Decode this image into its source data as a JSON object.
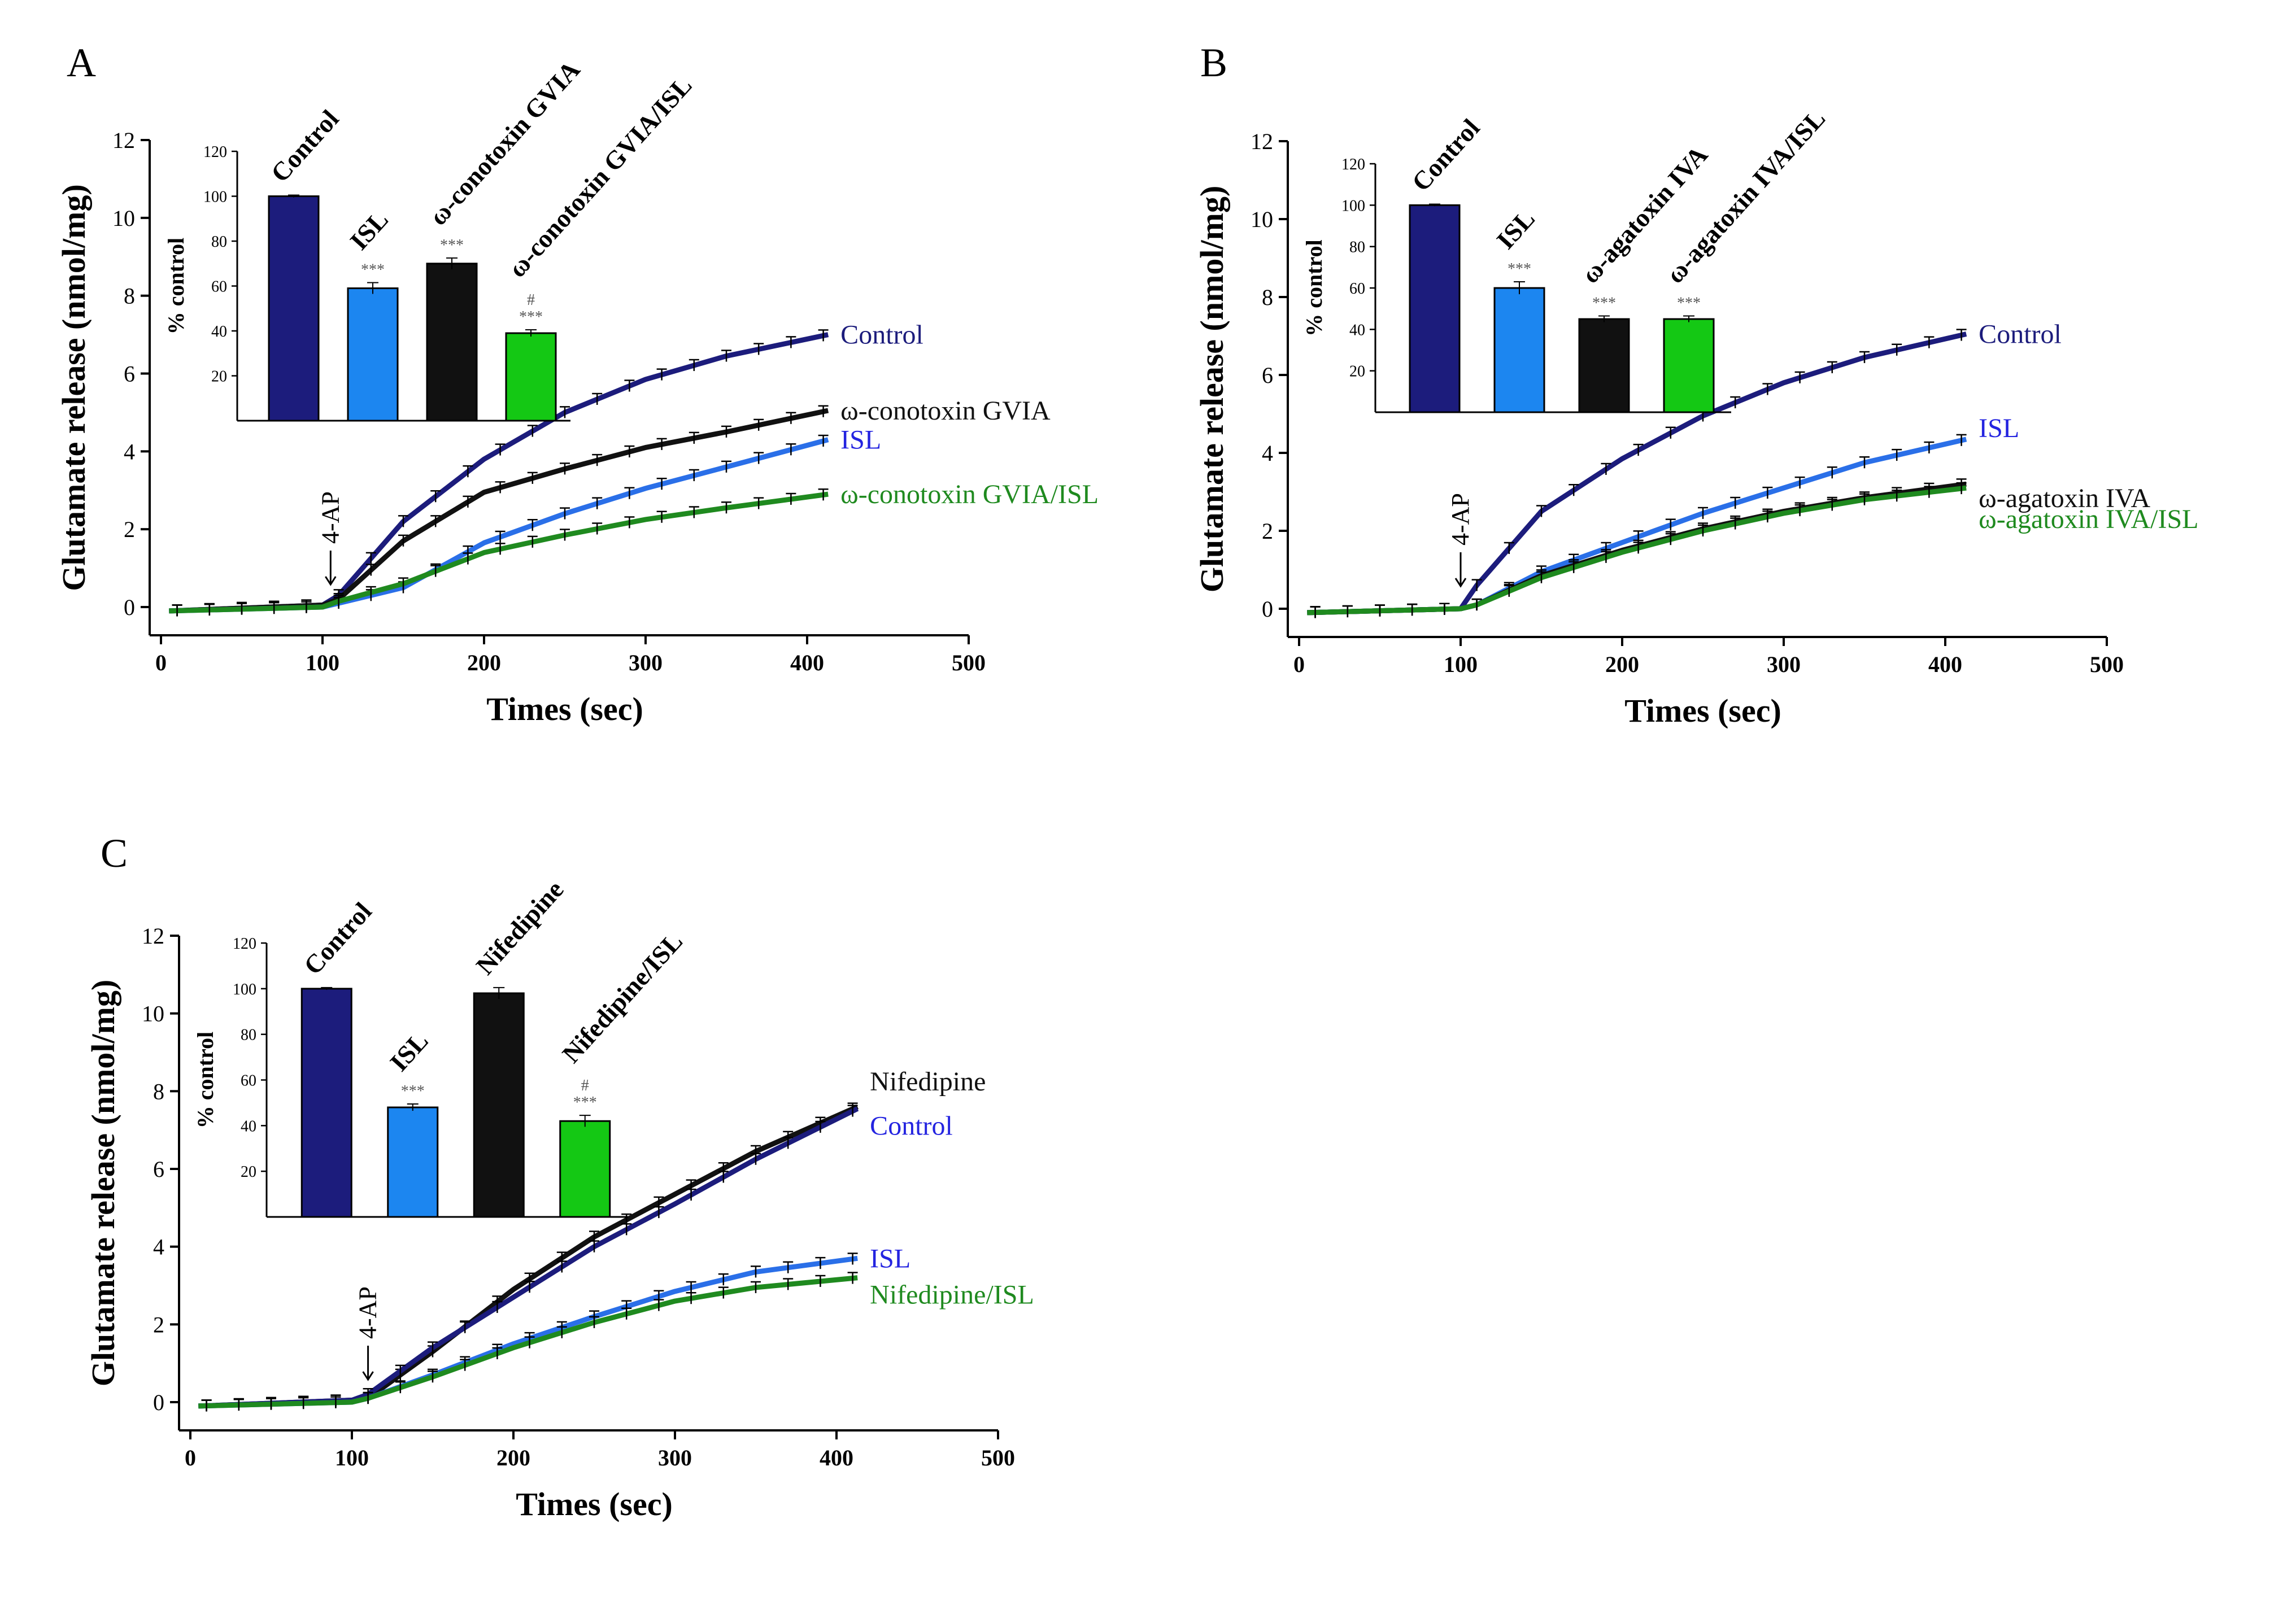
{
  "figure": {
    "colors": {
      "control": "#1c1c7c",
      "isl_line": "#2a6fe8",
      "isl_bar": "#1c86f0",
      "isl_label": "#2424e0",
      "treat": "#111111",
      "combo": "#1f8a1f",
      "combo_bar": "#14c814",
      "axis": "#000000"
    }
  },
  "chart_data": [
    {
      "panel_label": "A",
      "type": "line",
      "xlabel": "Times (sec)",
      "ylabel": "Glutamate release (nmol/mg)",
      "xlim": [
        0,
        500
      ],
      "ylim": [
        -1,
        12
      ],
      "xticks": [
        0,
        100,
        200,
        300,
        400,
        500
      ],
      "yticks": [
        0,
        2,
        4,
        6,
        8,
        10,
        12
      ],
      "stimulus": {
        "label": "4-AP",
        "x": 105
      },
      "series": [
        {
          "name": "Control",
          "color_key": "control",
          "label_color_key": "control",
          "x": [
            5,
            100,
            110,
            150,
            200,
            250,
            300,
            350,
            413
          ],
          "y": [
            -0.1,
            0.05,
            0.3,
            2.2,
            3.8,
            5.0,
            5.85,
            6.45,
            7.0
          ]
        },
        {
          "name": "ω-conotoxin GVIA",
          "color_key": "treat",
          "label_color_key": "treat",
          "x": [
            5,
            100,
            110,
            150,
            200,
            250,
            300,
            350,
            413
          ],
          "y": [
            -0.1,
            0.05,
            0.2,
            1.7,
            2.95,
            3.55,
            4.1,
            4.5,
            5.05
          ]
        },
        {
          "name": "ISL",
          "color_key": "isl_line",
          "label_color_key": "isl_label",
          "x": [
            5,
            100,
            110,
            150,
            200,
            250,
            300,
            350,
            413
          ],
          "y": [
            -0.1,
            0.0,
            0.1,
            0.5,
            1.65,
            2.4,
            3.05,
            3.6,
            4.3
          ]
        },
        {
          "name": "ω-conotoxin GVIA/ISL",
          "color_key": "combo",
          "label_color_key": "combo",
          "x": [
            5,
            100,
            110,
            150,
            200,
            250,
            300,
            350,
            413
          ],
          "y": [
            -0.1,
            0.0,
            0.15,
            0.6,
            1.4,
            1.85,
            2.25,
            2.55,
            2.9
          ]
        }
      ],
      "inset": {
        "type": "bar",
        "ylabel": "% control",
        "ylim": [
          0,
          120
        ],
        "yticks": [
          20,
          40,
          60,
          80,
          100,
          120
        ],
        "categories": [
          "Control",
          "ISL",
          "ω-conotoxin GVIA",
          "ω-conotoxin GVIA/ISL"
        ],
        "values": [
          100,
          59,
          70,
          39
        ],
        "errors": [
          0.5,
          2.5,
          2.5,
          1.5
        ],
        "color_keys": [
          "control",
          "isl_bar",
          "treat",
          "combo_bar"
        ],
        "annotations": [
          "",
          "***",
          "***",
          "#\n***"
        ]
      }
    },
    {
      "panel_label": "B",
      "type": "line",
      "xlabel": "Times (sec)",
      "ylabel": "Glutamate release (nmol/mg)",
      "xlim": [
        0,
        500
      ],
      "ylim": [
        -1,
        12
      ],
      "xticks": [
        0,
        100,
        200,
        300,
        400,
        500
      ],
      "yticks": [
        0,
        2,
        4,
        6,
        8,
        10,
        12
      ],
      "stimulus": {
        "label": "4-AP",
        "x": 100
      },
      "series": [
        {
          "name": "Control",
          "color_key": "control",
          "label_color_key": "control",
          "x": [
            5,
            100,
            110,
            150,
            200,
            250,
            300,
            350,
            413
          ],
          "y": [
            -0.1,
            0.0,
            0.6,
            2.5,
            3.85,
            4.95,
            5.8,
            6.45,
            7.05
          ]
        },
        {
          "name": "ISL",
          "color_key": "isl_line",
          "label_color_key": "isl_label",
          "x": [
            5,
            100,
            110,
            150,
            200,
            250,
            300,
            350,
            413
          ],
          "y": [
            -0.1,
            0.0,
            0.1,
            0.95,
            1.7,
            2.45,
            3.1,
            3.75,
            4.35
          ]
        },
        {
          "name": "ω-agatoxin IVA",
          "color_key": "treat",
          "label_color_key": "treat",
          "x": [
            5,
            100,
            110,
            150,
            200,
            250,
            300,
            350,
            413
          ],
          "y": [
            -0.1,
            0.0,
            0.1,
            0.85,
            1.5,
            2.05,
            2.5,
            2.85,
            3.2
          ]
        },
        {
          "name": "ω-agatoxin IVA/ISL",
          "color_key": "combo",
          "label_color_key": "combo",
          "x": [
            5,
            100,
            110,
            150,
            200,
            250,
            300,
            350,
            413
          ],
          "y": [
            -0.1,
            0.0,
            0.1,
            0.8,
            1.45,
            2.0,
            2.45,
            2.8,
            3.1
          ]
        }
      ],
      "inset": {
        "type": "bar",
        "ylabel": "% control",
        "ylim": [
          0,
          120
        ],
        "yticks": [
          20,
          40,
          60,
          80,
          100,
          120
        ],
        "categories": [
          "Control",
          "ISL",
          "ω-agatoxin IVA",
          "ω-agatoxin IVA/ISL"
        ],
        "values": [
          100,
          60,
          45,
          45
        ],
        "errors": [
          0.5,
          3,
          1.5,
          1.5
        ],
        "color_keys": [
          "control",
          "isl_bar",
          "treat",
          "combo_bar"
        ],
        "annotations": [
          "",
          "***",
          "***",
          "***"
        ]
      }
    },
    {
      "panel_label": "C",
      "type": "line",
      "xlabel": "Times (sec)",
      "ylabel": "Glutamate release (nmol/mg)",
      "xlim": [
        0,
        500
      ],
      "ylim": [
        -1,
        12
      ],
      "xticks": [
        0,
        100,
        200,
        300,
        400,
        500
      ],
      "yticks": [
        0,
        2,
        4,
        6,
        8,
        10,
        12
      ],
      "stimulus": {
        "label": "4-AP",
        "x": 110
      },
      "series": [
        {
          "name": "Nifedipine",
          "color_key": "treat",
          "label_color_key": "treat",
          "x": [
            5,
            100,
            110,
            150,
            200,
            250,
            300,
            350,
            413
          ],
          "y": [
            -0.1,
            0.05,
            0.1,
            1.3,
            2.9,
            4.25,
            5.35,
            6.45,
            7.6
          ]
        },
        {
          "name": "Control",
          "color_key": "control",
          "label_color_key": "isl_label",
          "x": [
            5,
            100,
            110,
            150,
            200,
            250,
            300,
            350,
            413
          ],
          "y": [
            -0.1,
            0.05,
            0.2,
            1.4,
            2.7,
            4.0,
            5.1,
            6.25,
            7.55
          ]
        },
        {
          "name": "ISL",
          "color_key": "isl_line",
          "label_color_key": "isl_label",
          "x": [
            5,
            100,
            110,
            150,
            200,
            250,
            300,
            350,
            413
          ],
          "y": [
            -0.1,
            0.0,
            0.1,
            0.7,
            1.5,
            2.2,
            2.85,
            3.35,
            3.7
          ]
        },
        {
          "name": "Nifedipine/ISL",
          "color_key": "combo",
          "label_color_key": "combo",
          "x": [
            5,
            100,
            110,
            150,
            200,
            250,
            300,
            350,
            413
          ],
          "y": [
            -0.1,
            0.0,
            0.1,
            0.65,
            1.4,
            2.05,
            2.6,
            2.95,
            3.2
          ]
        }
      ],
      "inset": {
        "type": "bar",
        "ylabel": "% control",
        "ylim": [
          0,
          120
        ],
        "yticks": [
          20,
          40,
          60,
          80,
          100,
          120
        ],
        "categories": [
          "Control",
          "ISL",
          "Nifedipine",
          "Nifedipine/ISL"
        ],
        "values": [
          100,
          48,
          98,
          42
        ],
        "errors": [
          0.5,
          1.5,
          2.5,
          2.5
        ],
        "color_keys": [
          "control",
          "isl_bar",
          "treat",
          "combo_bar"
        ],
        "annotations": [
          "",
          "***",
          "",
          "#\n***"
        ]
      }
    }
  ]
}
